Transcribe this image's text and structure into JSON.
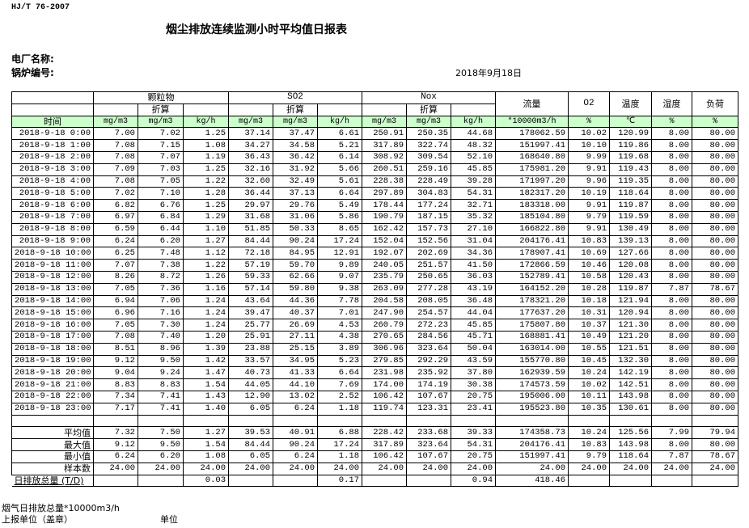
{
  "header": {
    "standard": "HJ/T  76-2007",
    "title": "烟尘排放连续监测小时平均值日报表",
    "plant_label": "电厂名称:",
    "boiler_label": "锅炉编号:",
    "date": "2018年9月18日"
  },
  "columns": {
    "particulate": "颗粒物",
    "so2": "SO2",
    "nox": "Nox",
    "converted": "折算",
    "flow": "流量",
    "o2": "O2",
    "temp": "温度",
    "humidity": "湿度",
    "load": "负荷",
    "time": "时间",
    "units": [
      "mg/m3",
      "mg/m3",
      "kg/h",
      "mg/m3",
      "mg/m3",
      "kg/h",
      "mg/m3",
      "mg/m3",
      "kg/h",
      "*10000m3/h",
      "%",
      "℃",
      "%",
      "%"
    ]
  },
  "rows": [
    [
      "2018-9-18 0:00",
      "7.00",
      "7.02",
      "1.25",
      "37.14",
      "37.47",
      "6.61",
      "250.91",
      "250.35",
      "44.68",
      "178062.59",
      "10.02",
      "120.99",
      "8.00",
      "80.00"
    ],
    [
      "2018-9-18 1:00",
      "7.08",
      "7.15",
      "1.08",
      "34.27",
      "34.58",
      "5.21",
      "317.89",
      "322.74",
      "48.32",
      "151997.41",
      "10.10",
      "119.86",
      "8.00",
      "80.00"
    ],
    [
      "2018-9-18 2:00",
      "7.08",
      "7.07",
      "1.19",
      "36.43",
      "36.42",
      "6.14",
      "308.92",
      "309.54",
      "52.10",
      "168640.80",
      "9.99",
      "119.68",
      "8.00",
      "80.00"
    ],
    [
      "2018-9-18 3:00",
      "7.09",
      "7.03",
      "1.25",
      "32.16",
      "31.92",
      "5.66",
      "260.51",
      "259.16",
      "45.85",
      "175981.20",
      "9.91",
      "119.43",
      "8.00",
      "80.00"
    ],
    [
      "2018-9-18 4:00",
      "7.08",
      "7.05",
      "1.22",
      "32.60",
      "32.49",
      "5.61",
      "228.38",
      "228.49",
      "39.28",
      "171997.20",
      "9.96",
      "119.35",
      "8.00",
      "80.00"
    ],
    [
      "2018-9-18 5:00",
      "7.02",
      "7.10",
      "1.28",
      "36.44",
      "37.13",
      "6.64",
      "297.89",
      "304.83",
      "54.31",
      "182317.20",
      "10.19",
      "118.64",
      "8.00",
      "80.00"
    ],
    [
      "2018-9-18 6:00",
      "6.82",
      "6.76",
      "1.25",
      "29.97",
      "29.76",
      "5.49",
      "178.44",
      "177.24",
      "32.71",
      "183318.00",
      "9.91",
      "119.87",
      "8.00",
      "80.00"
    ],
    [
      "2018-9-18 7:00",
      "6.97",
      "6.84",
      "1.29",
      "31.68",
      "31.06",
      "5.86",
      "190.79",
      "187.15",
      "35.32",
      "185104.80",
      "9.79",
      "119.59",
      "8.00",
      "80.00"
    ],
    [
      "2018-9-18 8:00",
      "6.59",
      "6.44",
      "1.10",
      "51.85",
      "50.33",
      "8.65",
      "162.42",
      "157.73",
      "27.10",
      "166822.80",
      "9.91",
      "130.49",
      "8.00",
      "80.00"
    ],
    [
      "2018-9-18 9:00",
      "6.24",
      "6.20",
      "1.27",
      "84.44",
      "90.24",
      "17.24",
      "152.04",
      "152.56",
      "31.04",
      "204176.41",
      "10.83",
      "139.13",
      "8.00",
      "80.00"
    ],
    [
      "2018-9-18 10:00",
      "6.25",
      "7.48",
      "1.12",
      "72.18",
      "84.95",
      "12.91",
      "192.07",
      "202.69",
      "34.36",
      "178907.41",
      "10.69",
      "127.66",
      "8.00",
      "80.00"
    ],
    [
      "2018-9-18 11:00",
      "7.07",
      "7.38",
      "1.22",
      "57.19",
      "59.70",
      "9.89",
      "240.05",
      "251.57",
      "41.50",
      "172866.59",
      "10.46",
      "120.08",
      "8.00",
      "80.00"
    ],
    [
      "2018-9-18 12:00",
      "8.26",
      "8.72",
      "1.26",
      "59.33",
      "62.66",
      "9.07",
      "235.79",
      "250.65",
      "36.03",
      "152789.41",
      "10.58",
      "120.43",
      "8.00",
      "80.00"
    ],
    [
      "2018-9-18 13:00",
      "7.05",
      "7.36",
      "1.16",
      "57.14",
      "59.80",
      "9.38",
      "263.09",
      "277.28",
      "43.19",
      "164152.20",
      "10.28",
      "119.87",
      "7.87",
      "78.67"
    ],
    [
      "2018-9-18 14:00",
      "6.94",
      "7.06",
      "1.24",
      "43.64",
      "44.36",
      "7.78",
      "204.58",
      "208.05",
      "36.48",
      "178321.20",
      "10.18",
      "121.94",
      "8.00",
      "80.00"
    ],
    [
      "2018-9-18 15:00",
      "6.96",
      "7.16",
      "1.24",
      "39.47",
      "40.37",
      "7.01",
      "247.90",
      "254.57",
      "44.04",
      "177637.20",
      "10.31",
      "120.94",
      "8.00",
      "80.00"
    ],
    [
      "2018-9-18 16:00",
      "7.05",
      "7.30",
      "1.24",
      "25.77",
      "26.69",
      "4.53",
      "260.79",
      "272.23",
      "45.85",
      "175807.80",
      "10.37",
      "121.30",
      "8.00",
      "80.00"
    ],
    [
      "2018-9-18 17:00",
      "7.08",
      "7.40",
      "1.20",
      "25.91",
      "27.11",
      "4.38",
      "270.65",
      "284.56",
      "45.71",
      "168881.41",
      "10.49",
      "121.20",
      "8.00",
      "80.00"
    ],
    [
      "2018-9-18 18:00",
      "8.51",
      "8.96",
      "1.39",
      "23.88",
      "25.15",
      "3.89",
      "306.96",
      "323.64",
      "50.04",
      "163014.00",
      "10.55",
      "121.51",
      "8.00",
      "80.00"
    ],
    [
      "2018-9-18 19:00",
      "9.12",
      "9.50",
      "1.42",
      "33.57",
      "34.95",
      "5.23",
      "279.85",
      "292.29",
      "43.59",
      "155770.80",
      "10.45",
      "132.30",
      "8.00",
      "80.00"
    ],
    [
      "2018-9-18 20:00",
      "9.04",
      "9.24",
      "1.47",
      "40.73",
      "41.33",
      "6.64",
      "231.98",
      "235.92",
      "37.80",
      "162939.59",
      "10.24",
      "142.19",
      "8.00",
      "80.00"
    ],
    [
      "2018-9-18 21:00",
      "8.83",
      "8.83",
      "1.54",
      "44.05",
      "44.10",
      "7.69",
      "174.00",
      "174.19",
      "30.38",
      "174573.59",
      "10.02",
      "142.51",
      "8.00",
      "80.00"
    ],
    [
      "2018-9-18 22:00",
      "7.34",
      "7.41",
      "1.43",
      "12.90",
      "13.02",
      "2.52",
      "106.42",
      "107.67",
      "20.75",
      "195006.00",
      "10.11",
      "143.98",
      "8.00",
      "80.00"
    ],
    [
      "2018-9-18 23:00",
      "7.17",
      "7.41",
      "1.40",
      "6.05",
      "6.24",
      "1.18",
      "119.74",
      "123.31",
      "23.41",
      "195523.80",
      "10.35",
      "130.61",
      "8.00",
      "80.00"
    ]
  ],
  "stats": [
    [
      "平均值",
      "7.32",
      "7.50",
      "1.27",
      "39.53",
      "40.91",
      "6.88",
      "228.42",
      "233.68",
      "39.33",
      "174358.73",
      "10.24",
      "125.56",
      "7.99",
      "79.94"
    ],
    [
      "最大值",
      "9.12",
      "9.50",
      "1.54",
      "84.44",
      "90.24",
      "17.24",
      "317.89",
      "323.64",
      "54.31",
      "204176.41",
      "10.83",
      "143.98",
      "8.00",
      "80.00"
    ],
    [
      "最小值",
      "6.24",
      "6.20",
      "1.08",
      "6.05",
      "6.24",
      "1.18",
      "106.42",
      "107.67",
      "20.75",
      "151997.41",
      "9.79",
      "118.64",
      "7.87",
      "78.67"
    ],
    [
      "样本数",
      "24.00",
      "24.00",
      "24.00",
      "24.00",
      "24.00",
      "24.00",
      "24.00",
      "24.00",
      "24.00",
      "24.00",
      "24.00",
      "24.00",
      "24.00",
      "24.00"
    ]
  ],
  "total": [
    "日排放总量 (T/D)",
    "",
    "",
    "0.03",
    "",
    "",
    "0.17",
    "",
    "",
    "0.94",
    "418.46",
    "",
    "",
    "",
    ""
  ],
  "footer": {
    "flue_gas_total": "烟气日排放总量*10000m3/h",
    "reporter": "上报单位（盖章）",
    "unit": "单位"
  },
  "colors": {
    "header_row_bg": "#ccffcc"
  }
}
